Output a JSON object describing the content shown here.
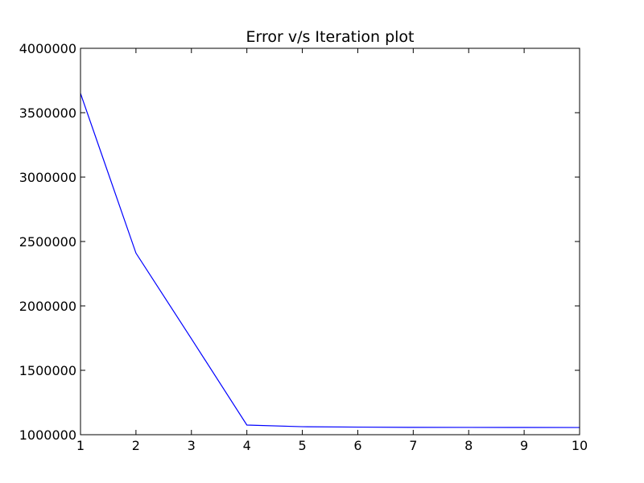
{
  "chart_data": {
    "type": "line",
    "title": "Error v/s Iteration plot",
    "xlabel": "",
    "ylabel": "",
    "x": [
      1,
      2,
      3,
      4,
      5,
      6,
      7,
      8,
      9,
      10
    ],
    "series": [
      {
        "values": [
          3650000,
          2410000,
          1745000,
          1075000,
          1062000,
          1059000,
          1057000,
          1056500,
          1056200,
          1056000
        ],
        "color": "#0000ff"
      }
    ],
    "xlim": [
      1,
      10
    ],
    "ylim": [
      1000000,
      4000000
    ],
    "xticks": [
      1,
      2,
      3,
      4,
      5,
      6,
      7,
      8,
      9,
      10
    ],
    "xtick_labels": [
      "1",
      "2",
      "3",
      "4",
      "5",
      "6",
      "7",
      "8",
      "9",
      "10"
    ],
    "yticks": [
      1000000,
      1500000,
      2000000,
      2500000,
      3000000,
      3500000,
      4000000
    ],
    "ytick_labels": [
      "1000000",
      "1500000",
      "2000000",
      "2500000",
      "3000000",
      "3500000",
      "4000000"
    ],
    "grid": false,
    "legend": "none"
  }
}
